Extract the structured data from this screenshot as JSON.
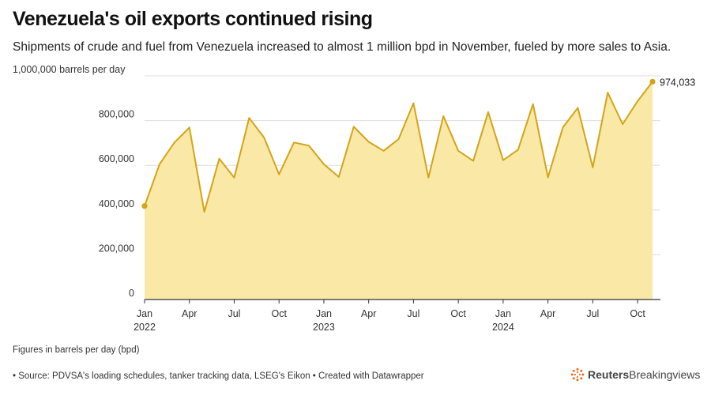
{
  "header": {
    "title": "Venezuela's oil exports continued rising",
    "subtitle": "Shipments of crude and fuel from Venezuela increased to almost 1 million bpd in November, fueled by more sales to Asia."
  },
  "footer": {
    "note": "Figures in barrels per day (bpd)",
    "source": "• Source: PDVSA's loading schedules, tanker tracking data, LSEG's Eikon • Created with Datawrapper",
    "brand_name": "Reuters",
    "brand_suffix": "Breakingviews",
    "logo_icon": "reuters-logo-icon"
  },
  "chart_data": {
    "type": "area",
    "title": "Venezuela's oil exports continued rising",
    "ylabel": "1,000,000 barrels per day",
    "ylim": [
      0,
      1000000
    ],
    "yticks": [
      0,
      200000,
      400000,
      600000,
      800000,
      1000000
    ],
    "ytick_labels": [
      "0",
      "200,000",
      "400,000",
      "600,000",
      "800,000",
      "1,000,000 barrels per day"
    ],
    "xticks": [
      {
        "index": 0,
        "label": "Jan",
        "year": "2022"
      },
      {
        "index": 3,
        "label": "Apr",
        "year": ""
      },
      {
        "index": 6,
        "label": "Jul",
        "year": ""
      },
      {
        "index": 9,
        "label": "Oct",
        "year": ""
      },
      {
        "index": 12,
        "label": "Jan",
        "year": "2023"
      },
      {
        "index": 15,
        "label": "Apr",
        "year": ""
      },
      {
        "index": 18,
        "label": "Jul",
        "year": ""
      },
      {
        "index": 21,
        "label": "Oct",
        "year": ""
      },
      {
        "index": 24,
        "label": "Jan",
        "year": "2024"
      },
      {
        "index": 27,
        "label": "Apr",
        "year": ""
      },
      {
        "index": 30,
        "label": "Jul",
        "year": ""
      },
      {
        "index": 33,
        "label": "Oct",
        "year": ""
      }
    ],
    "x": [
      "2022-01",
      "2022-02",
      "2022-03",
      "2022-04",
      "2022-05",
      "2022-06",
      "2022-07",
      "2022-08",
      "2022-09",
      "2022-10",
      "2022-11",
      "2022-12",
      "2023-01",
      "2023-02",
      "2023-03",
      "2023-04",
      "2023-05",
      "2023-06",
      "2023-07",
      "2023-08",
      "2023-09",
      "2023-10",
      "2023-11",
      "2023-12",
      "2024-01",
      "2024-02",
      "2024-03",
      "2024-04",
      "2024-05",
      "2024-06",
      "2024-07",
      "2024-08",
      "2024-09",
      "2024-10",
      "2024-11"
    ],
    "values": [
      418000,
      605000,
      702000,
      769000,
      392000,
      630000,
      545000,
      812000,
      724000,
      560000,
      702000,
      688000,
      605000,
      548000,
      773000,
      705000,
      665000,
      717000,
      878000,
      545000,
      820000,
      665000,
      620000,
      838000,
      623000,
      670000,
      874000,
      546000,
      770000,
      857000,
      591000,
      925000,
      784000,
      887000,
      974033
    ],
    "end_label": "974,033",
    "colors": {
      "line": "#d4a418",
      "fill": "#fae8a6",
      "grid": "#dddddd",
      "axis": "#333333"
    },
    "grid": true
  }
}
